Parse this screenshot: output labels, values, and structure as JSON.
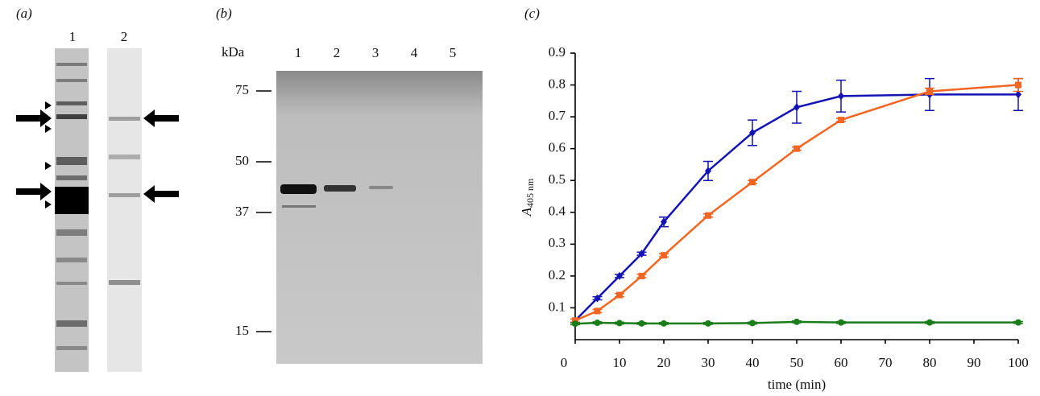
{
  "panel_a": {
    "label": "(a)",
    "lanes": [
      "1",
      "2"
    ]
  },
  "panel_b": {
    "label": "(b)",
    "unit": "kDa",
    "lanes": [
      "1",
      "2",
      "3",
      "4",
      "5"
    ],
    "markers": [
      75,
      50,
      37,
      15
    ]
  },
  "chart_data": {
    "type": "line",
    "label": "(c)",
    "xlabel": "time (min)",
    "ylabel": {
      "main": "A",
      "sub": "405 nm"
    },
    "x": [
      0,
      5,
      10,
      15,
      20,
      30,
      40,
      50,
      60,
      80,
      100
    ],
    "xlim": [
      0,
      100
    ],
    "xticks": [
      0,
      10,
      20,
      30,
      40,
      50,
      60,
      70,
      80,
      90,
      100
    ],
    "ylim": [
      0,
      0.9
    ],
    "yticks": [
      0.1,
      0.2,
      0.3,
      0.4,
      0.5,
      0.6,
      0.7,
      0.8,
      0.9
    ],
    "series": [
      {
        "color": "#1414b4",
        "marker": "diamond",
        "values": [
          0.06,
          0.13,
          0.2,
          0.27,
          0.37,
          0.53,
          0.65,
          0.73,
          0.765,
          0.77,
          0.77
        ],
        "errors": [
          0.005,
          0.005,
          0.005,
          0.005,
          0.015,
          0.03,
          0.04,
          0.05,
          0.05,
          0.05,
          0.05
        ]
      },
      {
        "color": "#f26522",
        "marker": "square",
        "values": [
          0.06,
          0.09,
          0.14,
          0.2,
          0.265,
          0.39,
          0.495,
          0.6,
          0.69,
          0.78,
          0.8
        ],
        "errors": [
          0.005,
          0.005,
          0.005,
          0.005,
          0.005,
          0.005,
          0.005,
          0.005,
          0.005,
          0.01,
          0.02
        ]
      },
      {
        "color": "#1a7d1a",
        "marker": "circle",
        "values": [
          0.05,
          0.053,
          0.052,
          0.051,
          0.051,
          0.051,
          0.052,
          0.056,
          0.054,
          0.054,
          0.054
        ],
        "errors": [
          0.003,
          0.003,
          0.003,
          0.003,
          0.003,
          0.003,
          0.003,
          0.003,
          0.003,
          0.003,
          0.003
        ]
      }
    ]
  }
}
